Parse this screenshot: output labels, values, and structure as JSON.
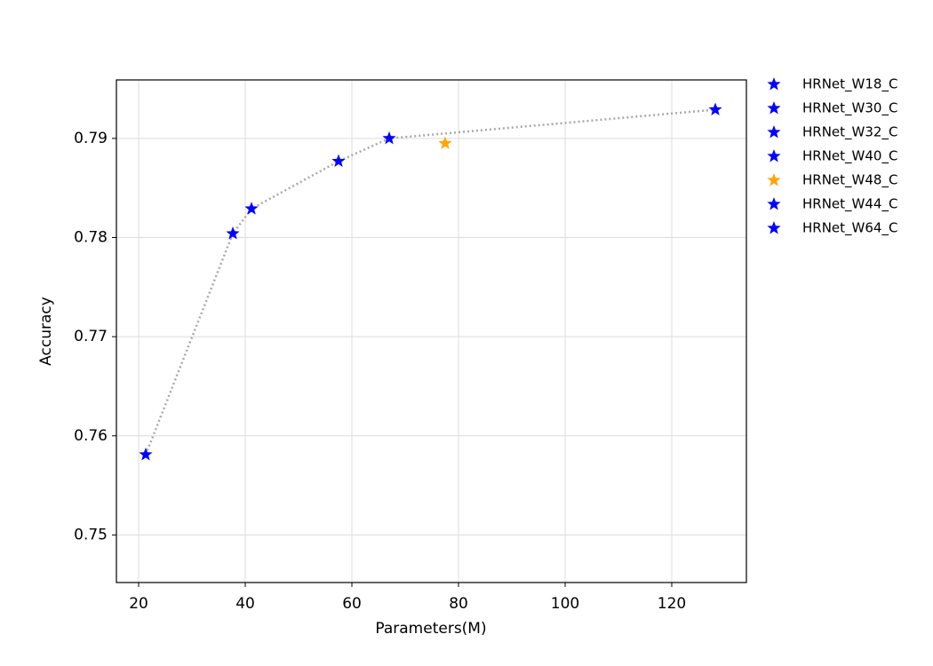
{
  "chart_data": {
    "type": "scatter",
    "xlabel": "Parameters(M)",
    "ylabel": "Accuracy",
    "xlim": [
      15.83,
      134
    ],
    "ylim": [
      0.7452,
      0.7959
    ],
    "xticks": [
      20,
      40,
      60,
      80,
      100,
      120
    ],
    "yticks": [
      0.75,
      0.76,
      0.77,
      0.78,
      0.79
    ],
    "grid": true,
    "legend": "outside-right",
    "marker": "star",
    "line": {
      "color": "#a9a9a9",
      "style": "dotted"
    },
    "series": [
      {
        "name": "HRNet_W18_C",
        "color": "#0000ff",
        "x": [
          21.33
        ],
        "values": [
          0.7581
        ],
        "on_line": true
      },
      {
        "name": "HRNet_W30_C",
        "color": "#0000ff",
        "x": [
          37.67
        ],
        "values": [
          0.7804
        ],
        "on_line": true
      },
      {
        "name": "HRNet_W32_C",
        "color": "#0000ff",
        "x": [
          41.17
        ],
        "values": [
          0.7829
        ],
        "on_line": true
      },
      {
        "name": "HRNet_W40_C",
        "color": "#0000ff",
        "x": [
          57.5
        ],
        "values": [
          0.7877
        ],
        "on_line": true
      },
      {
        "name": "HRNet_W48_C",
        "color": "#ffa500",
        "x": [
          77.5
        ],
        "values": [
          0.7895
        ],
        "on_line": false
      },
      {
        "name": "HRNet_W44_C",
        "color": "#0000ff",
        "x": [
          67.0
        ],
        "values": [
          0.79
        ],
        "on_line": true
      },
      {
        "name": "HRNet_W64_C",
        "color": "#0000ff",
        "x": [
          128.17
        ],
        "values": [
          0.7929
        ],
        "on_line": true
      }
    ]
  }
}
